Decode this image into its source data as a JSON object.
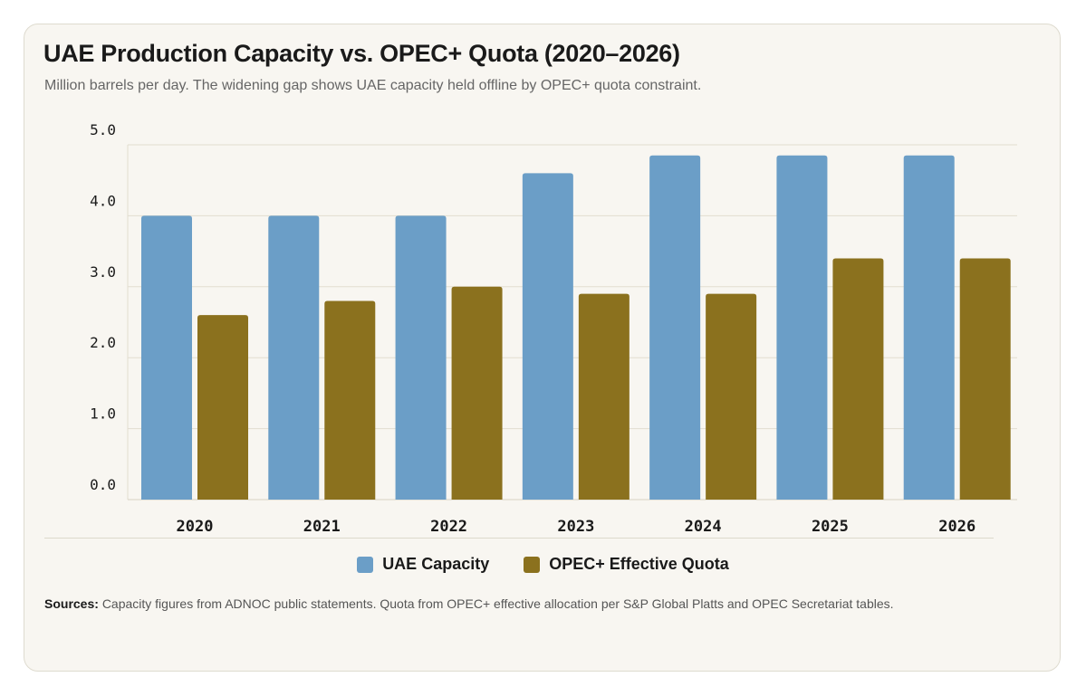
{
  "title": "UAE Production Capacity vs. OPEC+ Quota (2020–2026)",
  "subtitle": "Million barrels per day. The widening gap shows UAE capacity held offline by OPEC+ quota constraint.",
  "legend": {
    "capacity": "UAE Capacity",
    "quota": "OPEC+ Effective Quota"
  },
  "sources": {
    "label": "Sources:",
    "text": "Capacity figures from ADNOC public statements. Quota from OPEC+ effective allocation per S&P Global Platts and OPEC Secretariat tables."
  },
  "chart_data": {
    "type": "bar",
    "title": "UAE Production Capacity vs. OPEC+ Quota (2020–2026)",
    "subtitle": "Million barrels per day. The widening gap shows UAE capacity held offline by OPEC+ quota constraint.",
    "categories": [
      "2020",
      "2021",
      "2022",
      "2023",
      "2024",
      "2025",
      "2026"
    ],
    "series": [
      {
        "name": "UAE Capacity",
        "color": "#6b9ec7",
        "values": [
          4.0,
          4.0,
          4.0,
          4.6,
          4.85,
          4.85,
          4.85
        ]
      },
      {
        "name": "OPEC+ Effective Quota",
        "color": "#8b711e",
        "values": [
          2.6,
          2.8,
          3.0,
          2.9,
          2.9,
          3.4,
          3.4
        ]
      }
    ],
    "yticks": [
      "0.0",
      "1.0",
      "2.0",
      "3.0",
      "4.0",
      "5.0"
    ],
    "ylim": [
      0,
      5
    ],
    "grid": true,
    "legend_position": "bottom"
  }
}
